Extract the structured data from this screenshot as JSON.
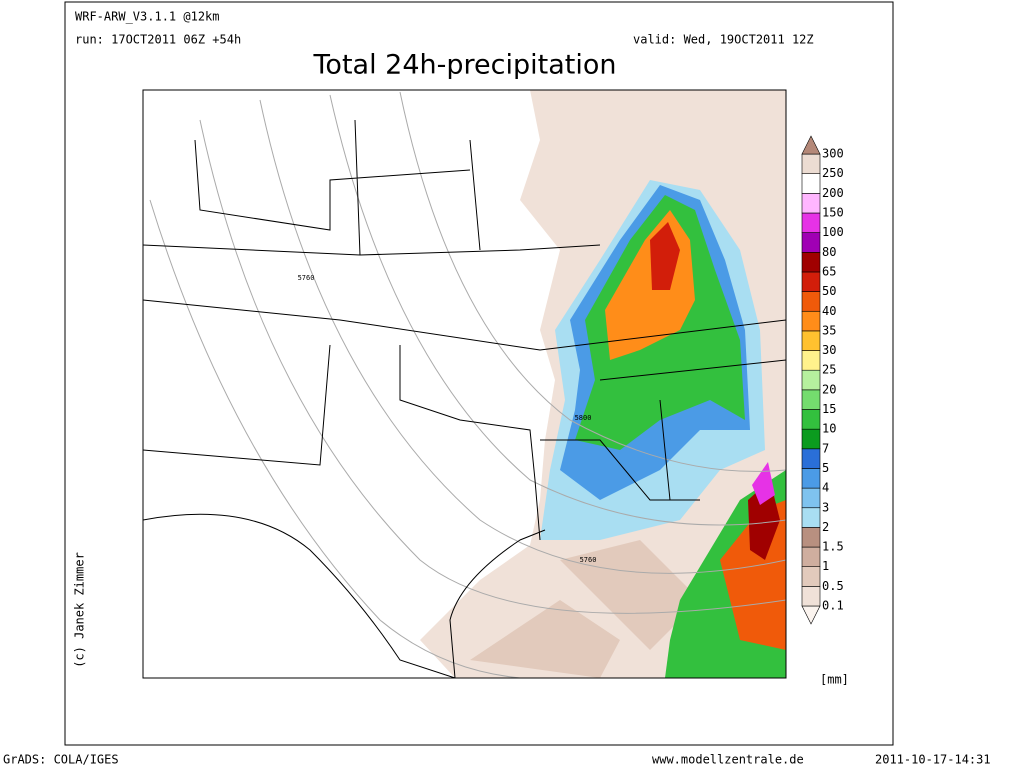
{
  "header": {
    "model": "WRF-ARW_V3.1.1 @12km",
    "run": "run: 17OCT2011 06Z +54h",
    "valid": "valid: Wed, 19OCT2011 12Z",
    "title": "Total 24h-precipitation"
  },
  "map": {
    "contour_labels": [
      "5760",
      "5800",
      "5760"
    ]
  },
  "colorbar": {
    "labels": [
      "0.1",
      "0.5",
      "1",
      "1.5",
      "2",
      "3",
      "4",
      "5",
      "7",
      "10",
      "15",
      "20",
      "25",
      "30",
      "35",
      "40",
      "50",
      "65",
      "80",
      "100",
      "150",
      "200",
      "250",
      "300"
    ],
    "colors": [
      "#fbf4ef",
      "#f0e1d8",
      "#e2cabc",
      "#cfae9f",
      "#b89080",
      "#a9def2",
      "#7fc3ef",
      "#4b9be6",
      "#2a6fd8",
      "#0b9b1f",
      "#33c03e",
      "#74dc6e",
      "#b6f09e",
      "#fff18c",
      "#ffc12f",
      "#ff8d19",
      "#f05a0a",
      "#d21e0a",
      "#a00000",
      "#a000b4",
      "#e632e6",
      "#ffb6ff",
      "#ffffff",
      "#ecdcd2",
      "#b48878"
    ],
    "unit": "[mm]"
  },
  "credit": "(c) Janek Zimmer",
  "footer": {
    "left": "GrADS: COLA/IGES",
    "center": "www.modellzentrale.de",
    "right": "2011-10-17-14:31"
  }
}
